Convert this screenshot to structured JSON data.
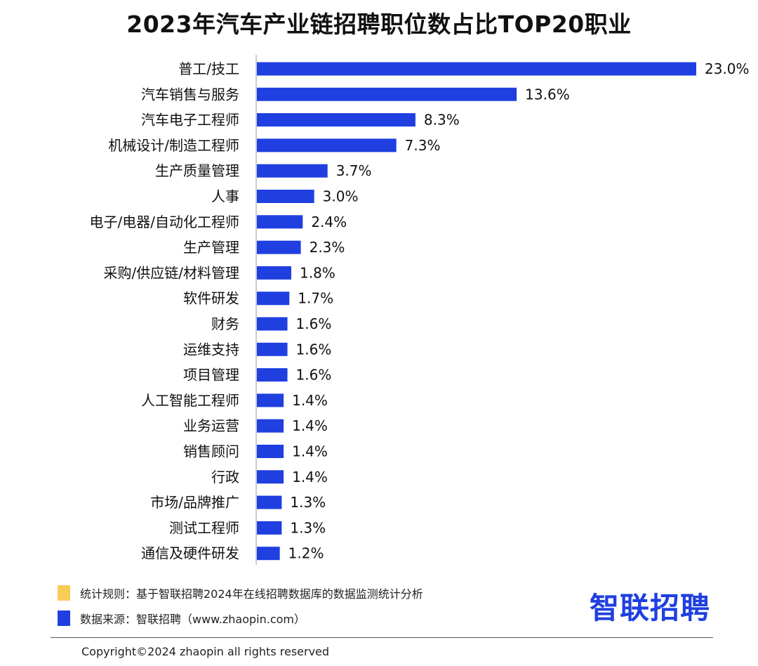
{
  "chart_data": {
    "type": "bar",
    "orientation": "horizontal",
    "title": "2023年汽车产业链招聘职位数占比TOP20职业",
    "categories": [
      "普工/技工",
      "汽车销售与服务",
      "汽车电子工程师",
      "机械设计/制造工程师",
      "生产质量管理",
      "人事",
      "电子/电器/自动化工程师",
      "生产管理",
      "采购/供应链/材料管理",
      "软件研发",
      "财务",
      "运维支持",
      "项目管理",
      "人工智能工程师",
      "业务运营",
      "销售顾问",
      "行政",
      "市场/品牌推广",
      "测试工程师",
      "通信及硬件研发"
    ],
    "values": [
      23.0,
      13.6,
      8.3,
      7.3,
      3.7,
      3.0,
      2.4,
      2.3,
      1.8,
      1.7,
      1.6,
      1.6,
      1.6,
      1.4,
      1.4,
      1.4,
      1.4,
      1.3,
      1.3,
      1.2
    ],
    "value_labels": [
      "23.0%",
      "13.6%",
      "8.3%",
      "7.3%",
      "3.7%",
      "3.0%",
      "2.4%",
      "2.3%",
      "1.8%",
      "1.7%",
      "1.6%",
      "1.6%",
      "1.6%",
      "1.4%",
      "1.4%",
      "1.4%",
      "1.4%",
      "1.3%",
      "1.3%",
      "1.2%"
    ],
    "unit": "%",
    "xlim": [
      0,
      23.0
    ],
    "grid": false,
    "bar_color": "#1f3fe0",
    "axis_color": "#bbbbbb"
  },
  "legend": {
    "rule_color": "#f7cc57",
    "rule_text": "统计规则：基于智联招聘2024年在线招聘数据库的数据监测统计分析",
    "source_color": "#1f3fe0",
    "source_text": "数据来源：智联招聘（www.zhaopin.com）"
  },
  "brand": {
    "logo_text": "智联招聘",
    "color": "#1f3fe0"
  },
  "footer": {
    "copyright": "Copyright©2024 zhaopin all rights reserved"
  }
}
